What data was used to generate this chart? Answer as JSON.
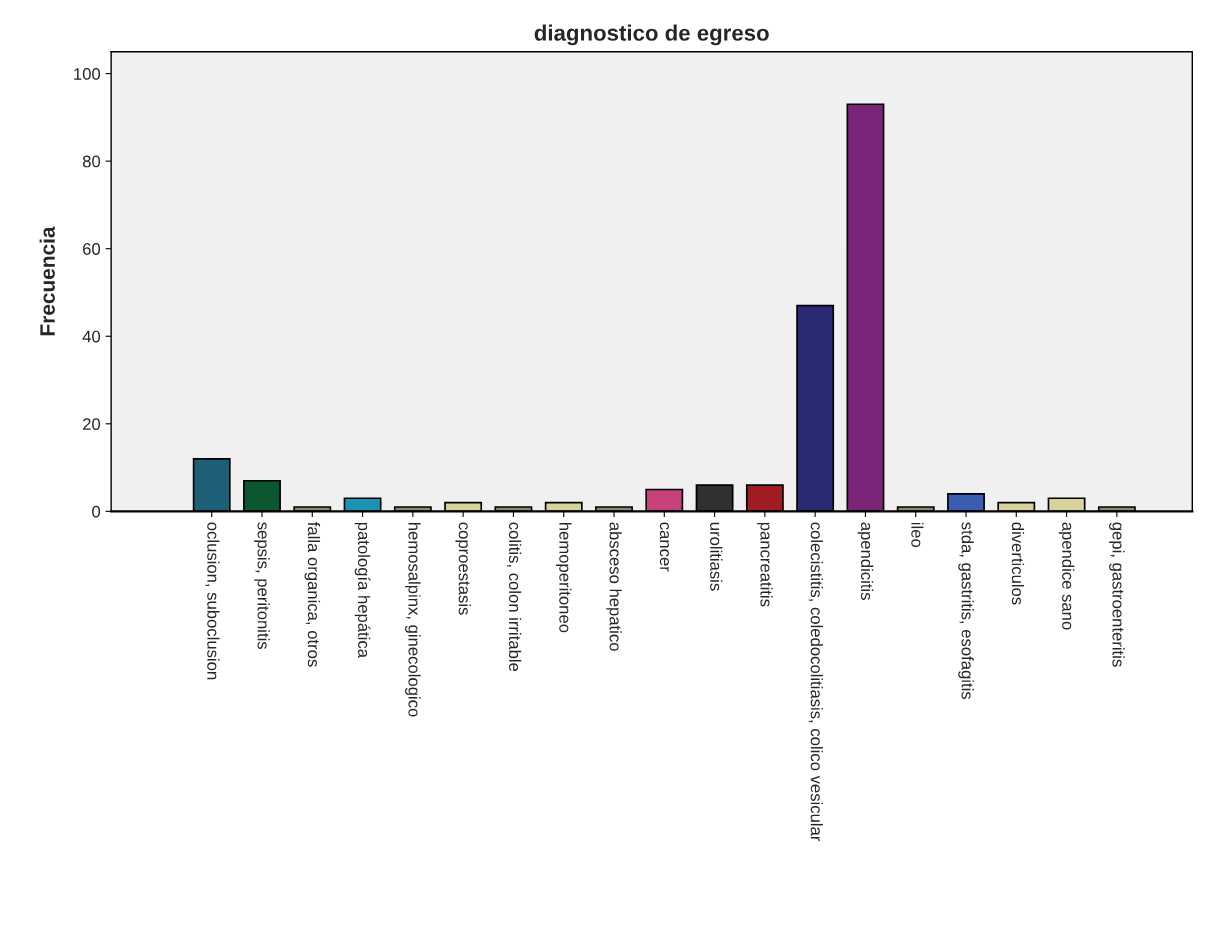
{
  "chart_data": {
    "type": "bar",
    "title": "diagnostico de egreso",
    "ylabel": "Frecuencia",
    "categories": [
      "oclusion, suboclusion",
      "sepsis, peritonitis",
      "falla organica, otros",
      "patología hepática",
      "hemosalpinx, ginecologico",
      "coproestasis",
      "colitis, colon irritable",
      "hemoperitoneo",
      "absceso hepatico",
      "cancer",
      "urolitiasis",
      "pancreatitis",
      "colecistitis, coledocolitiasis, colico vesicular",
      "apendicitis",
      "ileo",
      "stda, gastritis, esofagitis",
      "diverticulos",
      "apendice sano",
      "gepi, gastroenteritis"
    ],
    "values": [
      12,
      7,
      1,
      3,
      1,
      2,
      1,
      2,
      1,
      5,
      6,
      6,
      47,
      93,
      1,
      4,
      2,
      3,
      1
    ],
    "colors": [
      "#1c5f77",
      "#0c5630",
      "#8b8a6f",
      "#1b93b4",
      "#8b8a6f",
      "#d8d29b",
      "#8b8a6f",
      "#d8d29b",
      "#8b8a6f",
      "#c7417b",
      "#303030",
      "#a01b22",
      "#2a2a74",
      "#7a2577",
      "#8b8a6f",
      "#3b5cb0",
      "#d8d29b",
      "#d8d29b",
      "#8b8a6f"
    ],
    "ylim": [
      0,
      105
    ],
    "yticks": [
      0,
      20,
      40,
      60,
      80,
      100
    ],
    "grid": false
  }
}
